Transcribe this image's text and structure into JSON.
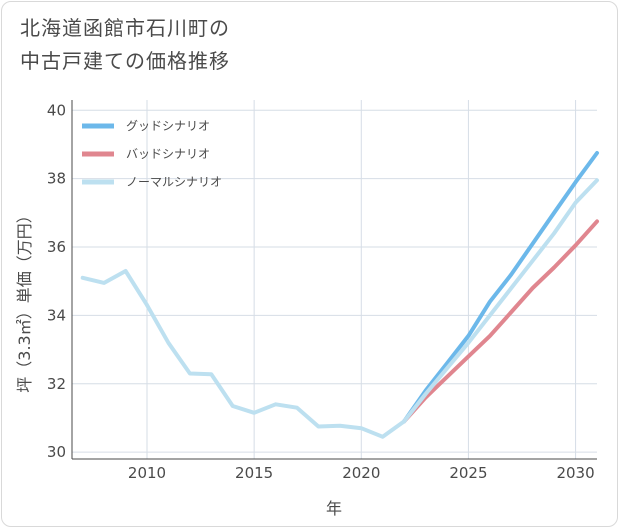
{
  "title_lines": [
    "北海道函館市石川町の",
    "中古戸建ての価格推移"
  ],
  "chart_data": {
    "type": "line",
    "title": "北海道函館市石川町の中古戸建ての価格推移",
    "xlabel": "年",
    "ylabel": "坪（3.3㎡）単価（万円）",
    "xlim": [
      2006.5,
      2031
    ],
    "ylim": [
      29.8,
      40.3
    ],
    "xticks": [
      2010,
      2015,
      2020,
      2025,
      2030
    ],
    "yticks": [
      30,
      32,
      34,
      36,
      38,
      40
    ],
    "grid": true,
    "legend_position": "top-left",
    "series": [
      {
        "name": "グッドシナリオ",
        "color": "#6cb8ea",
        "x": [
          2022,
          2023,
          2024,
          2025,
          2026,
          2027,
          2028,
          2029,
          2030,
          2031
        ],
        "y": [
          30.9,
          31.8,
          32.6,
          33.4,
          34.4,
          35.2,
          36.1,
          37.0,
          37.9,
          38.75
        ]
      },
      {
        "name": "バッドシナリオ",
        "color": "#e0868f",
        "x": [
          2022,
          2023,
          2024,
          2025,
          2026,
          2027,
          2028,
          2029,
          2030,
          2031
        ],
        "y": [
          30.9,
          31.6,
          32.2,
          32.8,
          33.4,
          34.1,
          34.8,
          35.4,
          36.05,
          36.75
        ]
      },
      {
        "name": "ノーマルシナリオ",
        "color": "#bde0f0",
        "x": [
          2007,
          2008,
          2009,
          2010,
          2011,
          2012,
          2013,
          2014,
          2015,
          2016,
          2017,
          2018,
          2019,
          2020,
          2021,
          2022,
          2023,
          2024,
          2025,
          2026,
          2027,
          2028,
          2029,
          2030,
          2031
        ],
        "y": [
          35.1,
          34.95,
          35.3,
          34.3,
          33.2,
          32.3,
          32.28,
          31.35,
          31.15,
          31.4,
          31.3,
          30.75,
          30.77,
          30.7,
          30.45,
          30.9,
          31.7,
          32.45,
          33.2,
          34.0,
          34.8,
          35.6,
          36.4,
          37.3,
          37.95
        ]
      }
    ]
  }
}
